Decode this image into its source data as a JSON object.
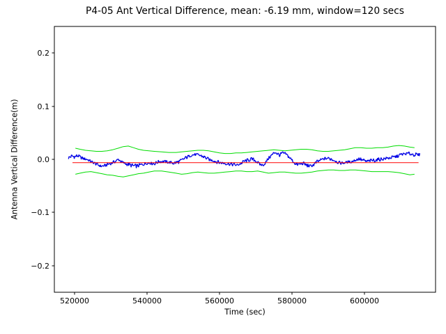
{
  "chart_data": {
    "type": "line",
    "title": "P4-05 Ant Vertical Difference, mean: -6.19 mm, window=120 secs",
    "xlabel": "Time (sec)",
    "ylabel": "Antenna Vertical Difference(m)",
    "xlim": [
      514400,
      619600
    ],
    "ylim": [
      -0.25,
      0.25
    ],
    "xticks": [
      520000,
      540000,
      560000,
      580000,
      600000
    ],
    "xtick_labels": [
      "520000",
      "540000",
      "560000",
      "580000",
      "600000"
    ],
    "yticks": [
      -0.2,
      -0.1,
      0.0,
      0.1,
      0.2
    ],
    "ytick_labels": [
      "−0.2",
      "−0.1",
      "0.0",
      "0.1",
      "0.2"
    ],
    "grid": false,
    "legend": null,
    "mean_mm": -6.19,
    "window_secs": 120,
    "colors": {
      "data": "#0000e6",
      "mean": "#ff0000",
      "envelope": "#00dd00",
      "axes": "#000000",
      "background": "#ffffff"
    },
    "series": [
      {
        "name": "antenna-vertical-difference",
        "style": "noisy_line",
        "color_key": "data",
        "noise_amplitude": 0.0045,
        "x": [
          518300,
          519200,
          520100,
          520900,
          521800,
          522600,
          523500,
          524500,
          525400,
          526300,
          527300,
          528300,
          529300,
          530200,
          531200,
          532100,
          533000,
          534000,
          535000,
          536000,
          537000,
          538000,
          539000,
          540000,
          541000,
          542000,
          543300,
          544500,
          545600,
          546500,
          547500,
          548500,
          549400,
          550400,
          551300,
          552300,
          553300,
          554300,
          555200,
          556200,
          557100,
          558100,
          559000,
          560000,
          561000,
          562000,
          563000,
          563900,
          564800,
          565800,
          566700,
          567700,
          568700,
          569600,
          570400,
          570900,
          571900,
          572400,
          573000,
          573500,
          574400,
          575400,
          576000,
          576700,
          577300,
          578300,
          579200,
          580200,
          581200,
          582100,
          583100,
          584000,
          585000,
          586000,
          586900,
          587900,
          588800,
          589800,
          590800,
          591800,
          592700,
          593700,
          594600,
          595600,
          596500,
          597600,
          598500,
          599500,
          600400,
          601400,
          602300,
          603300,
          604200,
          605200,
          606200,
          607100,
          608100,
          609100,
          610000,
          611000,
          611900,
          612900,
          613800,
          614600,
          615400
        ],
        "y": [
          0.003,
          0.006,
          0.005,
          0.007,
          0.003,
          0.001,
          0.0,
          -0.004,
          -0.007,
          -0.01,
          -0.013,
          -0.012,
          -0.009,
          -0.007,
          -0.004,
          0.0,
          -0.005,
          -0.008,
          -0.01,
          -0.012,
          -0.013,
          -0.011,
          -0.009,
          -0.007,
          -0.007,
          -0.008,
          -0.004,
          -0.004,
          -0.005,
          -0.006,
          -0.007,
          -0.005,
          -0.003,
          0.002,
          0.005,
          0.008,
          0.009,
          0.008,
          0.006,
          0.003,
          -0.001,
          -0.002,
          -0.004,
          -0.006,
          -0.007,
          -0.008,
          -0.009,
          -0.01,
          -0.011,
          -0.008,
          -0.004,
          -0.002,
          0.0,
          -0.001,
          -0.005,
          -0.009,
          -0.011,
          -0.009,
          -0.003,
          0.002,
          0.008,
          0.014,
          0.01,
          0.008,
          0.012,
          0.01,
          0.004,
          -0.003,
          -0.01,
          -0.009,
          -0.008,
          -0.011,
          -0.013,
          -0.01,
          -0.005,
          -0.001,
          0.001,
          0.002,
          0.001,
          -0.002,
          -0.006,
          -0.007,
          -0.006,
          -0.005,
          -0.004,
          -0.001,
          0.001,
          -0.002,
          -0.004,
          -0.003,
          -0.002,
          -0.001,
          0.0,
          0.001,
          0.002,
          0.003,
          0.004,
          0.006,
          0.009,
          0.01,
          0.011,
          0.01,
          0.009,
          0.008,
          0.009
        ]
      },
      {
        "name": "mean-line",
        "style": "hline",
        "color_key": "mean",
        "value": -0.00619,
        "x_start": 519400,
        "x_end": 614900
      },
      {
        "name": "upper-envelope",
        "style": "line",
        "color_key": "envelope",
        "x": [
          520200,
          521500,
          523000,
          524500,
          526000,
          527500,
          529000,
          530500,
          532000,
          533400,
          534800,
          536200,
          537600,
          539000,
          540500,
          542000,
          544000,
          546000,
          548000,
          549500,
          551000,
          552500,
          554000,
          555500,
          557000,
          558500,
          560000,
          561500,
          563000,
          564500,
          566000,
          567500,
          569000,
          570500,
          572000,
          573500,
          575000,
          576500,
          578000,
          579500,
          581000,
          582500,
          584000,
          585500,
          587000,
          588500,
          590000,
          591500,
          593000,
          594500,
          596000,
          597500,
          599000,
          600500,
          602000,
          603500,
          605000,
          606500,
          608000,
          609500,
          611000,
          612500,
          613800
        ],
        "y": [
          0.021,
          0.019,
          0.017,
          0.016,
          0.015,
          0.015,
          0.016,
          0.018,
          0.021,
          0.024,
          0.025,
          0.022,
          0.019,
          0.017,
          0.016,
          0.015,
          0.014,
          0.013,
          0.013,
          0.014,
          0.015,
          0.016,
          0.017,
          0.017,
          0.016,
          0.014,
          0.012,
          0.011,
          0.011,
          0.012,
          0.012,
          0.013,
          0.014,
          0.015,
          0.016,
          0.017,
          0.018,
          0.017,
          0.016,
          0.017,
          0.018,
          0.019,
          0.019,
          0.018,
          0.016,
          0.015,
          0.015,
          0.016,
          0.017,
          0.018,
          0.02,
          0.022,
          0.022,
          0.021,
          0.021,
          0.022,
          0.022,
          0.023,
          0.025,
          0.026,
          0.025,
          0.023,
          0.022
        ]
      },
      {
        "name": "lower-envelope",
        "style": "line",
        "color_key": "envelope",
        "x": [
          520200,
          521500,
          523000,
          524500,
          526000,
          527500,
          529000,
          530500,
          532000,
          533400,
          534800,
          536200,
          537600,
          539000,
          540500,
          542000,
          544000,
          546000,
          548000,
          549500,
          551000,
          552500,
          554000,
          555500,
          557000,
          558500,
          560000,
          561500,
          563000,
          564500,
          566000,
          567500,
          569000,
          570500,
          572000,
          573500,
          575000,
          576500,
          578000,
          579500,
          581000,
          582500,
          584000,
          585500,
          587000,
          588500,
          590000,
          591500,
          593000,
          594500,
          596000,
          597500,
          599000,
          600500,
          602000,
          603500,
          605000,
          606500,
          608000,
          609500,
          611000,
          612500,
          613800
        ],
        "y": [
          -0.028,
          -0.026,
          -0.024,
          -0.023,
          -0.025,
          -0.027,
          -0.029,
          -0.03,
          -0.032,
          -0.033,
          -0.031,
          -0.029,
          -0.027,
          -0.026,
          -0.024,
          -0.022,
          -0.022,
          -0.024,
          -0.026,
          -0.028,
          -0.027,
          -0.025,
          -0.024,
          -0.025,
          -0.026,
          -0.026,
          -0.025,
          -0.024,
          -0.023,
          -0.022,
          -0.022,
          -0.023,
          -0.023,
          -0.022,
          -0.024,
          -0.026,
          -0.025,
          -0.024,
          -0.024,
          -0.025,
          -0.026,
          -0.026,
          -0.025,
          -0.024,
          -0.022,
          -0.021,
          -0.02,
          -0.02,
          -0.021,
          -0.021,
          -0.02,
          -0.02,
          -0.021,
          -0.022,
          -0.023,
          -0.023,
          -0.023,
          -0.023,
          -0.024,
          -0.025,
          -0.027,
          -0.029,
          -0.028
        ]
      }
    ]
  }
}
